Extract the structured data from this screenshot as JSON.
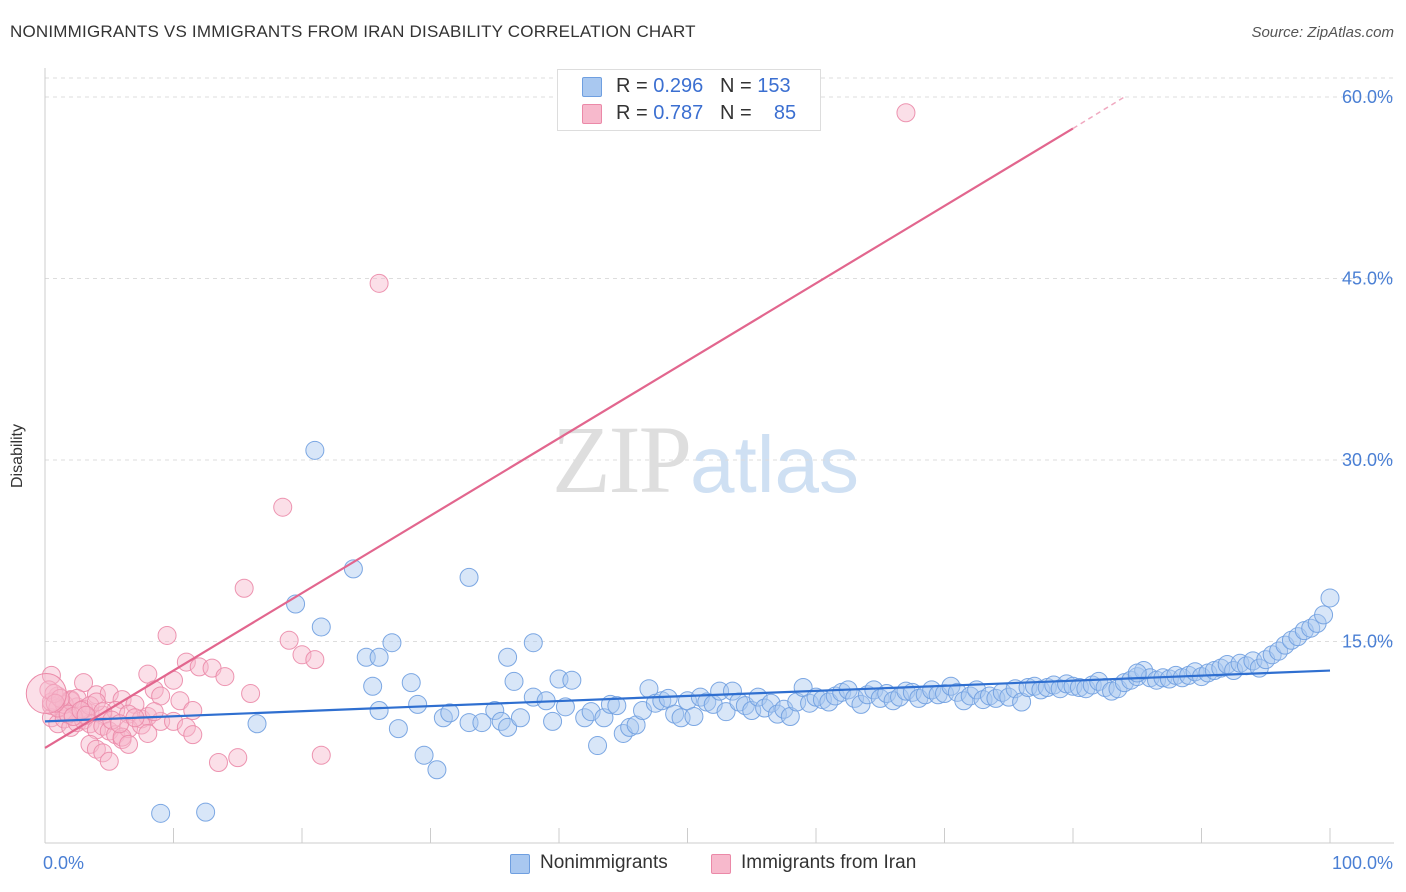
{
  "title": "NONIMMIGRANTS VS IMMIGRANTS FROM IRAN DISABILITY CORRELATION CHART",
  "source": "Source: ZipAtlas.com",
  "watermark": {
    "part1": "ZIP",
    "part2": "atlas"
  },
  "legend_top": [
    {
      "r_label": "R = ",
      "r_value": "0.296",
      "n_label": "N = ",
      "n_value": "153",
      "color": "#a9c8f0",
      "border": "#6f9fe0"
    },
    {
      "r_label": "R = ",
      "r_value": "0.787",
      "n_label": "N = ",
      "n_value": "85",
      "color": "#f7b9cc",
      "border": "#eb89a8"
    }
  ],
  "legend_bottom": [
    {
      "label": "Nonimmigrants",
      "color": "#a9c8f0",
      "border": "#6f9fe0"
    },
    {
      "label": "Immigrants from Iran",
      "color": "#f7b9cc",
      "border": "#eb89a8"
    }
  ],
  "chart_data": {
    "type": "scatter",
    "title": "NONIMMIGRANTS VS IMMIGRANTS FROM IRAN DISABILITY CORRELATION CHART",
    "xlabel": "",
    "ylabel": "Disability",
    "xlim": [
      0,
      100
    ],
    "ylim": [
      0,
      60
    ],
    "x_tick_labels": [
      {
        "value": 0,
        "label": "0.0%"
      },
      {
        "value": 100,
        "label": "100.0%"
      }
    ],
    "y_tick_labels": [
      {
        "value": 15,
        "label": "15.0%"
      },
      {
        "value": 30,
        "label": "30.0%"
      },
      {
        "value": 45,
        "label": "45.0%"
      },
      {
        "value": 60,
        "label": "60.0%"
      }
    ],
    "grid": "horizontal dashed",
    "series": [
      {
        "name": "Nonimmigrants",
        "color": "#6f9fe0",
        "fill": "#a9c8f0",
        "r": 0.296,
        "n": 153,
        "trend": {
          "x0": 0,
          "y0": 8.4,
          "x1": 100,
          "y1": 12.6
        },
        "points": [
          [
            9,
            0.8
          ],
          [
            12.5,
            0.9
          ],
          [
            21,
            30.8
          ],
          [
            24,
            21
          ],
          [
            33,
            20.3
          ],
          [
            19.5,
            18.1
          ],
          [
            21.5,
            16.2
          ],
          [
            25,
            13.7
          ],
          [
            26,
            13.7
          ],
          [
            27,
            14.9
          ],
          [
            36,
            13.7
          ],
          [
            38,
            14.9
          ],
          [
            16.5,
            8.2
          ],
          [
            25.5,
            11.3
          ],
          [
            26,
            9.3
          ],
          [
            27.5,
            7.8
          ],
          [
            28.5,
            11.6
          ],
          [
            29,
            9.8
          ],
          [
            29.5,
            5.6
          ],
          [
            30.5,
            4.4
          ],
          [
            31,
            8.7
          ],
          [
            31.5,
            9.1
          ],
          [
            33,
            8.3
          ],
          [
            34,
            8.3
          ],
          [
            35,
            9.3
          ],
          [
            35.5,
            8.4
          ],
          [
            36,
            7.9
          ],
          [
            36.5,
            11.7
          ],
          [
            37,
            8.7
          ],
          [
            38,
            10.4
          ],
          [
            39,
            10.1
          ],
          [
            39.5,
            8.4
          ],
          [
            40,
            11.9
          ],
          [
            40.5,
            9.6
          ],
          [
            41,
            11.8
          ],
          [
            42,
            8.7
          ],
          [
            42.5,
            9.2
          ],
          [
            43,
            6.4
          ],
          [
            43.5,
            8.7
          ],
          [
            44,
            9.8
          ],
          [
            44.5,
            9.7
          ],
          [
            45,
            7.4
          ],
          [
            45.5,
            7.9
          ],
          [
            46,
            8.1
          ],
          [
            46.5,
            9.3
          ],
          [
            47,
            11.1
          ],
          [
            47.5,
            9.9
          ],
          [
            48,
            10.1
          ],
          [
            48.5,
            10.3
          ],
          [
            49,
            9.0
          ],
          [
            49.5,
            8.7
          ],
          [
            50,
            10.1
          ],
          [
            50.5,
            8.8
          ],
          [
            51,
            10.4
          ],
          [
            51.5,
            10.0
          ],
          [
            52,
            9.8
          ],
          [
            52.5,
            10.9
          ],
          [
            53,
            9.2
          ],
          [
            53.5,
            10.9
          ],
          [
            54,
            10.0
          ],
          [
            54.5,
            9.7
          ],
          [
            55,
            9.3
          ],
          [
            55.5,
            10.4
          ],
          [
            56,
            9.5
          ],
          [
            56.5,
            9.9
          ],
          [
            57,
            9.0
          ],
          [
            57.5,
            9.4
          ],
          [
            58,
            8.8
          ],
          [
            58.5,
            10.0
          ],
          [
            59,
            11.2
          ],
          [
            59.5,
            9.9
          ],
          [
            60,
            10.4
          ],
          [
            60.5,
            10.2
          ],
          [
            61,
            10.0
          ],
          [
            61.5,
            10.5
          ],
          [
            62,
            10.8
          ],
          [
            62.5,
            11.0
          ],
          [
            63,
            10.3
          ],
          [
            63.5,
            9.8
          ],
          [
            64,
            10.6
          ],
          [
            64.5,
            11.0
          ],
          [
            65,
            10.3
          ],
          [
            65.5,
            10.7
          ],
          [
            66,
            10.1
          ],
          [
            66.5,
            10.4
          ],
          [
            67,
            10.9
          ],
          [
            67.5,
            10.8
          ],
          [
            68,
            10.3
          ],
          [
            68.5,
            10.6
          ],
          [
            69,
            11.0
          ],
          [
            69.5,
            10.6
          ],
          [
            70,
            10.7
          ],
          [
            70.5,
            11.3
          ],
          [
            71,
            10.8
          ],
          [
            71.5,
            10.1
          ],
          [
            72,
            10.5
          ],
          [
            72.5,
            11.0
          ],
          [
            73,
            10.2
          ],
          [
            73.5,
            10.5
          ],
          [
            74,
            10.3
          ],
          [
            74.5,
            10.8
          ],
          [
            75,
            10.4
          ],
          [
            75.5,
            11.1
          ],
          [
            76,
            10.0
          ],
          [
            76.5,
            11.2
          ],
          [
            77,
            11.3
          ],
          [
            77.5,
            11.0
          ],
          [
            78,
            11.2
          ],
          [
            78.5,
            11.4
          ],
          [
            79,
            11.1
          ],
          [
            79.5,
            11.5
          ],
          [
            80,
            11.3
          ],
          [
            80.5,
            11.2
          ],
          [
            81,
            11.1
          ],
          [
            81.5,
            11.4
          ],
          [
            82,
            11.7
          ],
          [
            82.5,
            11.2
          ],
          [
            83,
            10.9
          ],
          [
            83.5,
            11.1
          ],
          [
            84,
            11.6
          ],
          [
            84.5,
            11.8
          ],
          [
            85,
            12.1
          ],
          [
            85.5,
            12.6
          ],
          [
            86,
            12.0
          ],
          [
            86.5,
            11.8
          ],
          [
            87,
            12.0
          ],
          [
            87.5,
            11.9
          ],
          [
            88,
            12.2
          ],
          [
            88.5,
            12.0
          ],
          [
            89,
            12.2
          ],
          [
            89.5,
            12.5
          ],
          [
            90,
            12.1
          ],
          [
            90.5,
            12.4
          ],
          [
            91,
            12.6
          ],
          [
            91.5,
            12.8
          ],
          [
            92,
            13.1
          ],
          [
            92.5,
            12.6
          ],
          [
            93,
            13.2
          ],
          [
            93.5,
            13.0
          ],
          [
            94,
            13.4
          ],
          [
            94.5,
            12.8
          ],
          [
            95,
            13.5
          ],
          [
            95.5,
            13.9
          ],
          [
            96,
            14.2
          ],
          [
            96.5,
            14.7
          ],
          [
            97,
            15.1
          ],
          [
            97.5,
            15.4
          ],
          [
            98,
            15.9
          ],
          [
            98.5,
            16.1
          ],
          [
            99,
            16.5
          ],
          [
            99.5,
            17.2
          ],
          [
            100,
            18.6
          ],
          [
            85,
            12.4
          ]
        ]
      },
      {
        "name": "Immigrants from Iran",
        "color": "#eb89a8",
        "fill": "#f7b9cc",
        "r": 0.787,
        "n": 85,
        "trend": {
          "x0": 0,
          "y0": 6.2,
          "x1": 80,
          "y1": 57.4,
          "dash_to": {
            "x": 84,
            "y": 60
          }
        },
        "points": [
          [
            67,
            58.7
          ],
          [
            26,
            44.6
          ],
          [
            18.5,
            26.1
          ],
          [
            15.5,
            19.4
          ],
          [
            9.5,
            15.5
          ],
          [
            19,
            15.1
          ],
          [
            20,
            13.9
          ],
          [
            21,
            13.5
          ],
          [
            11,
            13.3
          ],
          [
            12,
            12.9
          ],
          [
            13,
            12.8
          ],
          [
            14,
            12.1
          ],
          [
            10,
            11.8
          ],
          [
            8,
            12.3
          ],
          [
            3,
            11.6
          ],
          [
            0.5,
            12.2
          ],
          [
            1,
            10.5
          ],
          [
            2,
            10.2
          ],
          [
            4,
            10.6
          ],
          [
            5,
            10.7
          ],
          [
            6,
            10.2
          ],
          [
            7,
            9.8
          ],
          [
            8.5,
            11.0
          ],
          [
            9,
            10.5
          ],
          [
            10.5,
            10.1
          ],
          [
            11.5,
            9.3
          ],
          [
            16,
            10.7
          ],
          [
            0.5,
            9.7
          ],
          [
            1.5,
            9.1
          ],
          [
            2.5,
            9.6
          ],
          [
            3.5,
            9.1
          ],
          [
            4.5,
            8.9
          ],
          [
            5.5,
            9.3
          ],
          [
            6.5,
            9.0
          ],
          [
            7.5,
            8.6
          ],
          [
            8,
            8.8
          ],
          [
            0.5,
            8.7
          ],
          [
            1,
            8.2
          ],
          [
            1.5,
            8.6
          ],
          [
            2,
            7.9
          ],
          [
            2.5,
            8.3
          ],
          [
            3,
            8.5
          ],
          [
            3.5,
            8.2
          ],
          [
            4,
            7.7
          ],
          [
            4.5,
            8.0
          ],
          [
            5,
            7.6
          ],
          [
            5.5,
            7.3
          ],
          [
            6,
            6.9
          ],
          [
            6.5,
            7.8
          ],
          [
            7.5,
            8.1
          ],
          [
            8,
            7.4
          ],
          [
            9,
            8.4
          ],
          [
            10,
            8.4
          ],
          [
            11,
            7.9
          ],
          [
            11.5,
            7.3
          ],
          [
            0.5,
            10.0
          ],
          [
            1,
            9.5
          ],
          [
            1.5,
            9.8
          ],
          [
            2,
            10.1
          ],
          [
            2.5,
            10.3
          ],
          [
            3,
            9.4
          ],
          [
            3.5,
            9.7
          ],
          [
            4,
            10.0
          ],
          [
            4.5,
            9.2
          ],
          [
            0.3,
            11.0
          ],
          [
            0.7,
            10.7
          ],
          [
            1.2,
            10.3
          ],
          [
            3.5,
            6.5
          ],
          [
            4,
            6.1
          ],
          [
            4.5,
            5.8
          ],
          [
            5,
            5.1
          ],
          [
            6,
            7.1
          ],
          [
            6.5,
            6.5
          ],
          [
            13.5,
            5.0
          ],
          [
            15,
            5.4
          ],
          [
            21.5,
            5.6
          ],
          [
            1.8,
            9.0
          ],
          [
            2.2,
            8.8
          ],
          [
            2.8,
            9.3
          ],
          [
            3.2,
            8.9
          ],
          [
            5.2,
            8.5
          ],
          [
            5.8,
            8.2
          ],
          [
            7,
            8.7
          ],
          [
            8.5,
            9.2
          ],
          [
            0.8,
            9.9
          ]
        ]
      }
    ]
  }
}
